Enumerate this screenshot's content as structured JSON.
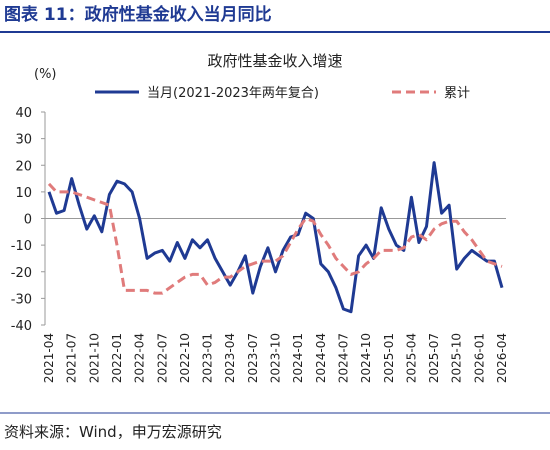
{
  "header": "图表 11：政府性基金收入当月同比",
  "source": "资料来源：Wind，申万宏源研究",
  "chart_data": {
    "type": "line",
    "title": "政府性基金收入增速",
    "y_unit": "(%)",
    "categories": [
      "2021-04",
      null,
      null,
      "2021-07",
      null,
      null,
      "2021-10",
      null,
      null,
      "2022-01",
      null,
      null,
      "2022-04",
      null,
      null,
      "2022-07",
      null,
      null,
      "2022-10",
      null,
      null,
      "2023-01",
      null,
      null,
      "2023-04",
      null,
      null,
      "2023-07",
      null,
      null,
      "2023-10",
      null,
      null,
      "2024-01",
      null,
      null,
      "2024-04",
      null,
      null,
      "2024-07",
      null,
      null,
      "2024-10",
      null,
      null,
      "2025-01",
      null,
      null,
      "2025-04",
      null,
      null,
      "2025-07",
      null,
      null,
      "2025-10",
      null,
      null,
      "2026-01",
      null,
      null,
      "2026-04"
    ],
    "series": [
      {
        "name": "当月(2021-2023年两年复合)",
        "color": "#1f3a93",
        "linestyle": "solid",
        "values": [
          10,
          2,
          3,
          15,
          5,
          -4,
          1,
          -5,
          9,
          14,
          13,
          10,
          0,
          -15,
          -13,
          -12,
          -16,
          -9,
          -15,
          -8,
          -11,
          -8,
          -15,
          -20,
          -25,
          -20,
          -14,
          -28,
          -18,
          -11,
          -20,
          -12,
          -7,
          -6,
          2,
          0,
          -17,
          -20,
          -26,
          -34,
          -35,
          -14,
          -10,
          -15,
          4,
          -4,
          -10,
          -12,
          8,
          -9,
          -3,
          21,
          2,
          5,
          -19,
          -15,
          -12,
          -14,
          -16,
          -16,
          -26
        ]
      },
      {
        "name": "累计",
        "color": "#e07b7b",
        "linestyle": "dashed",
        "values": [
          13,
          10,
          10,
          10,
          9,
          8,
          7,
          6,
          5,
          -10,
          -27,
          -27,
          -27,
          -27,
          -28,
          -28,
          -26,
          -24,
          -22,
          -21,
          -21,
          -25,
          -24,
          -22,
          -22,
          -20,
          -18,
          -17,
          -16,
          -16,
          -16,
          -14,
          -9,
          -4,
          0,
          -1,
          -6,
          -10,
          -15,
          -18,
          -21,
          -20,
          -17,
          -15,
          -12,
          -12,
          -12,
          -11,
          -7,
          -6,
          -8,
          -4,
          -2,
          -1,
          -1,
          -5,
          -8,
          -12,
          -16,
          -17,
          -18
        ]
      }
    ],
    "ylim": [
      -40,
      40
    ],
    "yticks": [
      -40,
      -30,
      -20,
      -10,
      0,
      10,
      20,
      30,
      40
    ],
    "grid": false
  }
}
